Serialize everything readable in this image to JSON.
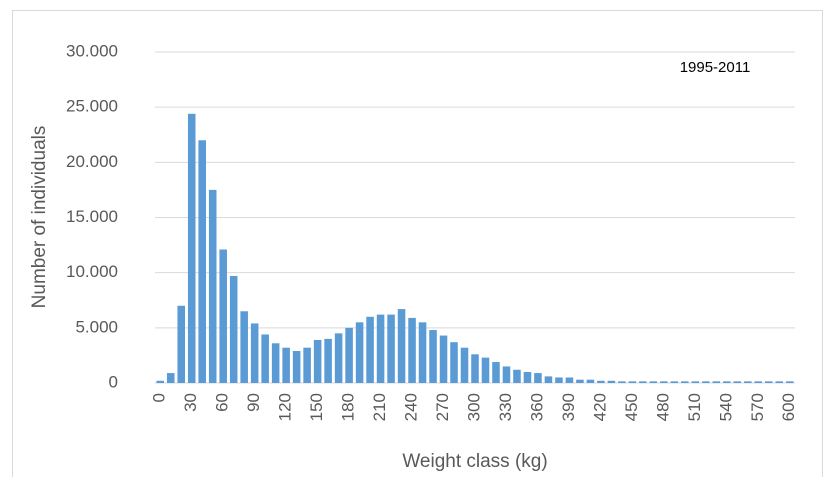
{
  "chart_data": {
    "type": "bar",
    "annotation": "1995-2011",
    "x_label": "Weight class (kg)",
    "y_label": "Number of individuals",
    "categories": [
      "0",
      null,
      null,
      "30",
      null,
      null,
      "60",
      null,
      null,
      "90",
      null,
      null,
      "120",
      null,
      null,
      "150",
      null,
      null,
      "180",
      null,
      null,
      "210",
      null,
      null,
      "240",
      null,
      null,
      "270",
      null,
      null,
      "300",
      null,
      null,
      "330",
      null,
      null,
      "360",
      null,
      null,
      "390",
      null,
      null,
      "420",
      null,
      null,
      "450",
      null,
      null,
      "480",
      null,
      null,
      "510",
      null,
      null,
      "540",
      null,
      null,
      "570",
      null,
      null,
      "600"
    ],
    "values": [
      200,
      900,
      7000,
      24400,
      22000,
      17500,
      12100,
      9700,
      6500,
      5400,
      4400,
      3600,
      3200,
      2900,
      3200,
      3900,
      4000,
      4500,
      5000,
      5500,
      6000,
      6200,
      6200,
      6700,
      5900,
      5500,
      4800,
      4300,
      3700,
      3200,
      2600,
      2300,
      1900,
      1500,
      1200,
      1000,
      900,
      600,
      500,
      500,
      300,
      300,
      200,
      200,
      150,
      150,
      150,
      150,
      150,
      150,
      150,
      150,
      150,
      150,
      150,
      150,
      150,
      150,
      150,
      150,
      150
    ],
    "color": "#5b9bd5",
    "ylim": [
      0,
      30000
    ],
    "yticks": [
      0,
      {
        "value": 5000,
        "label": "5.000"
      },
      {
        "value": 10000,
        "label": "10.000"
      },
      {
        "value": 15000,
        "label": "15.000"
      },
      {
        "value": 20000,
        "label": "20.000"
      },
      {
        "value": 25000,
        "label": "25.000"
      },
      {
        "value": 30000,
        "label": "30.000"
      }
    ],
    "grid": true
  }
}
